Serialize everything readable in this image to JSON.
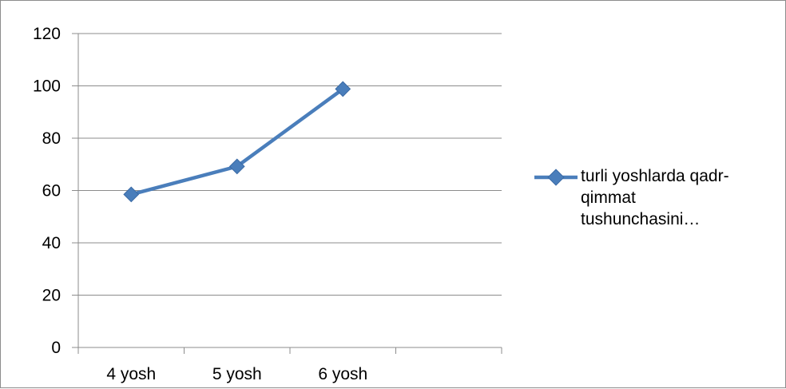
{
  "chart_data": {
    "type": "line",
    "title": "",
    "xlabel": "",
    "ylabel": "",
    "categories": [
      "4 yosh",
      "5 yosh",
      "6 yosh",
      ""
    ],
    "series": [
      {
        "name": "turli yoshlarda qadr-qimmat tushunchasini…",
        "values": [
          58.5,
          69.2,
          98.8,
          null
        ],
        "color": "#4a7ebb"
      }
    ],
    "ylim": [
      0,
      120
    ],
    "yticks": [
      0,
      20,
      40,
      60,
      80,
      100,
      120
    ],
    "grid": true,
    "legend_position": "right"
  },
  "colors": {
    "series": "#4a7ebb",
    "grid": "#8c8c8c",
    "axis": "#8c8c8c",
    "frame": "#8c8c8c"
  },
  "legend": {
    "lines": [
      "turli yoshlarda qadr-",
      "qimmat",
      "tushunchasini…"
    ]
  }
}
